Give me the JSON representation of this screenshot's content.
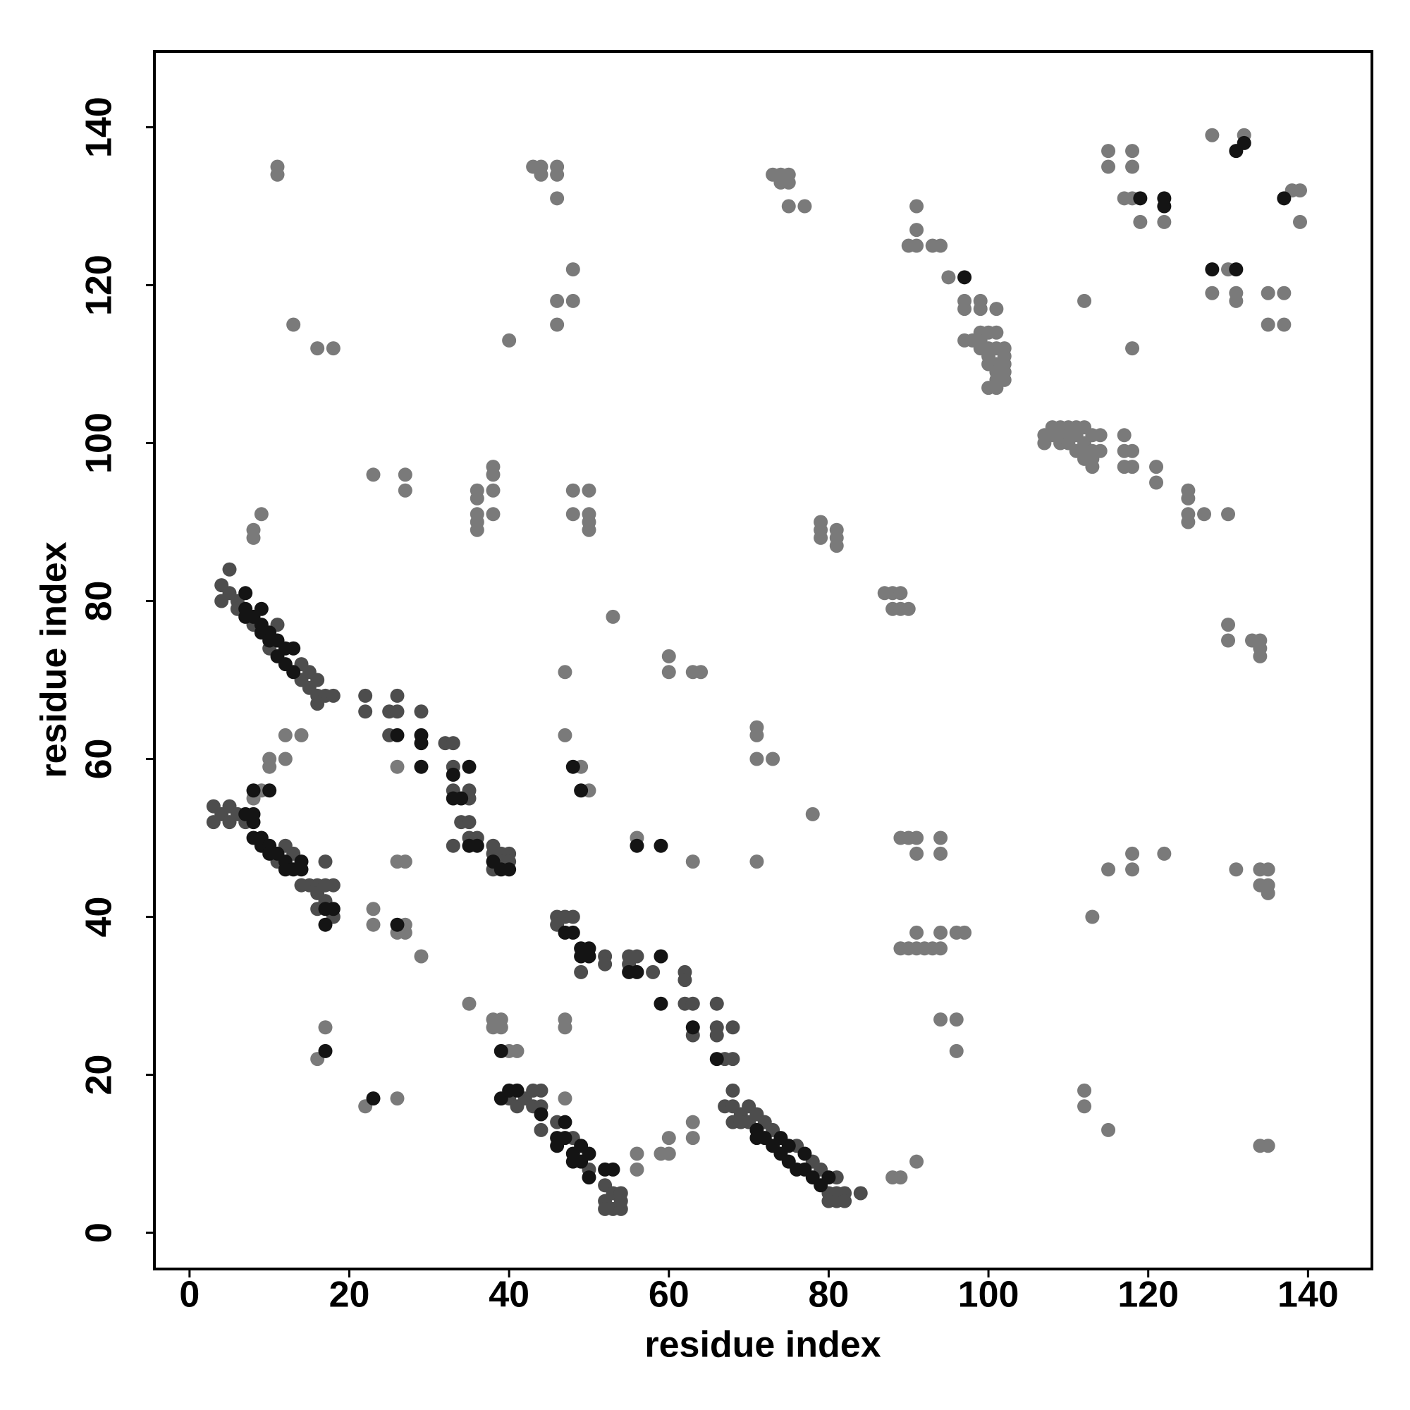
{
  "chart_data": {
    "type": "scatter",
    "xlabel": "residue index",
    "ylabel": "residue index",
    "xlim": [
      -4.4,
      148
    ],
    "ylim": [
      -4.6,
      149.6
    ],
    "xticks": [
      0,
      20,
      40,
      60,
      80,
      100,
      120,
      140
    ],
    "yticks": [
      0,
      20,
      40,
      60,
      80,
      100,
      120,
      140
    ],
    "series": [
      {
        "color": "#7a7a7a",
        "x": [
          11,
          11,
          13,
          16,
          18,
          23,
          27,
          27,
          8,
          8,
          9,
          36,
          36,
          36,
          36,
          36,
          38,
          38,
          38,
          38,
          40,
          43,
          44,
          44,
          46,
          46,
          46,
          46,
          48,
          48,
          46,
          48,
          48,
          50,
          50,
          50,
          50,
          53,
          47,
          47,
          10,
          10,
          12,
          12,
          14,
          9,
          8,
          26,
          26,
          27,
          23,
          23,
          27,
          26,
          27,
          29,
          35,
          38,
          38,
          39,
          39,
          40,
          41,
          17,
          16,
          22,
          26,
          47,
          47,
          47,
          49,
          50,
          56,
          63,
          60,
          60,
          59,
          56,
          56,
          63,
          63,
          60,
          60,
          63,
          64,
          71,
          71,
          71,
          73,
          71,
          78,
          73,
          74,
          74,
          75,
          75,
          75,
          77,
          79,
          79,
          79,
          81,
          81,
          81,
          87,
          88,
          88,
          89,
          89,
          90,
          89,
          90,
          91,
          91,
          94,
          94,
          89,
          90,
          91,
          91,
          92,
          93,
          94,
          94,
          96,
          97,
          94,
          96,
          96,
          88,
          89,
          91,
          90,
          91,
          91,
          91,
          93,
          94,
          95,
          97,
          97,
          99,
          99,
          97,
          98,
          99,
          99,
          99,
          100,
          100,
          100,
          100,
          101,
          101,
          101,
          101,
          101,
          101,
          100,
          101,
          102,
          102,
          102,
          102,
          102,
          107,
          107,
          108,
          108,
          109,
          109,
          109,
          110,
          110,
          110,
          111,
          111,
          111,
          112,
          112,
          112,
          112,
          113,
          113,
          113,
          113,
          114,
          114,
          117,
          117,
          117,
          118,
          118,
          121,
          121,
          125,
          125,
          125,
          125,
          127,
          130,
          112,
          118,
          115,
          115,
          118,
          118,
          118,
          119,
          122,
          117,
          128,
          132,
          128,
          130,
          131,
          131,
          135,
          137,
          135,
          137,
          138,
          139,
          139,
          130,
          130,
          133,
          134,
          134,
          134,
          131,
          134,
          135,
          134,
          135,
          135,
          118,
          118,
          115,
          122,
          113,
          112,
          112,
          115,
          134,
          135
        ],
        "values": [
          135,
          134,
          115,
          112,
          112,
          96,
          96,
          94,
          89,
          88,
          91,
          94,
          93,
          91,
          90,
          89,
          97,
          96,
          94,
          91,
          113,
          135,
          135,
          134,
          135,
          134,
          131,
          118,
          118,
          122,
          115,
          94,
          91,
          94,
          91,
          90,
          89,
          78,
          71,
          63,
          60,
          59,
          63,
          60,
          63,
          56,
          55,
          59,
          47,
          47,
          41,
          39,
          39,
          38,
          38,
          35,
          29,
          27,
          26,
          27,
          26,
          23,
          23,
          26,
          22,
          16,
          17,
          27,
          26,
          17,
          59,
          56,
          50,
          47,
          12,
          10,
          10,
          10,
          8,
          14,
          12,
          73,
          71,
          71,
          71,
          64,
          63,
          60,
          60,
          47,
          53,
          134,
          134,
          133,
          134,
          133,
          130,
          130,
          90,
          89,
          88,
          89,
          88,
          87,
          81,
          81,
          79,
          81,
          79,
          79,
          50,
          50,
          50,
          48,
          50,
          48,
          36,
          36,
          38,
          36,
          36,
          36,
          38,
          36,
          38,
          38,
          27,
          27,
          23,
          7,
          7,
          9,
          125,
          130,
          127,
          125,
          125,
          125,
          121,
          118,
          117,
          118,
          117,
          113,
          113,
          114,
          113,
          112,
          114,
          112,
          111,
          110,
          117,
          114,
          112,
          110,
          109,
          108,
          107,
          107,
          112,
          111,
          110,
          109,
          108,
          101,
          100,
          102,
          101,
          102,
          101,
          100,
          102,
          101,
          100,
          102,
          101,
          99,
          102,
          100,
          99,
          98,
          101,
          99,
          98,
          97,
          101,
          99,
          101,
          99,
          97,
          99,
          97,
          97,
          95,
          94,
          93,
          91,
          90,
          91,
          91,
          118,
          112,
          137,
          135,
          137,
          135,
          131,
          128,
          128,
          131,
          139,
          139,
          119,
          122,
          119,
          118,
          119,
          119,
          115,
          115,
          132,
          132,
          128,
          77,
          75,
          75,
          75,
          74,
          73,
          46,
          46,
          46,
          44,
          44,
          43,
          48,
          46,
          46,
          48,
          40,
          18,
          16,
          13,
          11,
          11
        ]
      },
      {
        "color": "#4d4d4d",
        "x": [
          4,
          4,
          5,
          6,
          6,
          8,
          10,
          11,
          14,
          14,
          15,
          15,
          16,
          16,
          17,
          18,
          5,
          16,
          3,
          3,
          4,
          5,
          5,
          6,
          7,
          11,
          12,
          13,
          14,
          15,
          16,
          16,
          16,
          17,
          17,
          18,
          18,
          17,
          40,
          41,
          42,
          43,
          43,
          44,
          44,
          44,
          46,
          48,
          50,
          52,
          52,
          52,
          53,
          53,
          54,
          54,
          54,
          67,
          68,
          68,
          68,
          69,
          69,
          70,
          70,
          71,
          72,
          73,
          76,
          78,
          79,
          80,
          80,
          81,
          81,
          81,
          82,
          82,
          84,
          46,
          46,
          47,
          48,
          49,
          52,
          52,
          55,
          55,
          56,
          58,
          62,
          62,
          62,
          63,
          63,
          66,
          66,
          66,
          67,
          68,
          68,
          22,
          22,
          25,
          26,
          26,
          25,
          29,
          32,
          33,
          33,
          33,
          35,
          35,
          34,
          35,
          35,
          36,
          33,
          38,
          38,
          38,
          39,
          39,
          40,
          40
        ],
        "values": [
          82,
          80,
          81,
          80,
          79,
          77,
          74,
          77,
          72,
          70,
          71,
          69,
          70,
          68,
          68,
          68,
          84,
          67,
          54,
          52,
          53,
          54,
          52,
          53,
          52,
          47,
          49,
          48,
          44,
          44,
          44,
          43,
          41,
          44,
          42,
          44,
          40,
          47,
          17,
          16,
          17,
          18,
          16,
          18,
          16,
          13,
          14,
          12,
          8,
          6,
          4,
          3,
          5,
          3,
          5,
          3,
          4,
          16,
          18,
          16,
          14,
          15,
          14,
          16,
          14,
          15,
          14,
          13,
          11,
          9,
          8,
          5,
          4,
          7,
          5,
          4,
          5,
          4,
          5,
          40,
          39,
          40,
          40,
          33,
          35,
          34,
          35,
          34,
          35,
          33,
          33,
          32,
          29,
          29,
          25,
          29,
          26,
          25,
          22,
          22,
          26,
          68,
          66,
          66,
          68,
          66,
          63,
          66,
          62,
          62,
          59,
          56,
          56,
          55,
          52,
          52,
          50,
          50,
          49,
          49,
          48,
          46,
          48,
          47,
          48,
          47
        ]
      },
      {
        "color": "#141414",
        "x": [
          7,
          7,
          7,
          8,
          9,
          9,
          9,
          10,
          10,
          11,
          11,
          12,
          12,
          13,
          13,
          7,
          8,
          8,
          8,
          9,
          9,
          10,
          10,
          11,
          12,
          12,
          13,
          14,
          14,
          46,
          46,
          47,
          47,
          48,
          48,
          49,
          49,
          50,
          50,
          52,
          53,
          71,
          71,
          72,
          73,
          74,
          74,
          75,
          75,
          76,
          77,
          77,
          78,
          79,
          80,
          47,
          48,
          49,
          49,
          50,
          50,
          55,
          56,
          59,
          59,
          63,
          26,
          29,
          29,
          29,
          33,
          33,
          34,
          35,
          35,
          36,
          38,
          39,
          40,
          17,
          17,
          18,
          48,
          49,
          10,
          8,
          56,
          59,
          26,
          17,
          23,
          39,
          39,
          97,
          119,
          122,
          122,
          128,
          131,
          131,
          132,
          137,
          44,
          40,
          41,
          66
        ],
        "values": [
          81,
          79,
          78,
          78,
          79,
          77,
          76,
          76,
          75,
          75,
          73,
          74,
          72,
          74,
          71,
          53,
          53,
          52,
          50,
          50,
          49,
          49,
          48,
          48,
          47,
          46,
          46,
          47,
          46,
          12,
          11,
          14,
          12,
          10,
          9,
          11,
          9,
          10,
          7,
          8,
          8,
          13,
          12,
          12,
          11,
          12,
          10,
          11,
          9,
          8,
          10,
          8,
          7,
          6,
          7,
          38,
          38,
          36,
          35,
          36,
          35,
          33,
          33,
          35,
          29,
          26,
          63,
          63,
          62,
          59,
          58,
          55,
          55,
          59,
          49,
          49,
          47,
          46,
          46,
          41,
          39,
          41,
          59,
          56,
          56,
          56,
          49,
          49,
          39,
          23,
          17,
          23,
          17,
          121,
          131,
          131,
          130,
          122,
          122,
          137,
          138,
          131,
          15,
          18,
          18,
          22
        ]
      }
    ]
  }
}
